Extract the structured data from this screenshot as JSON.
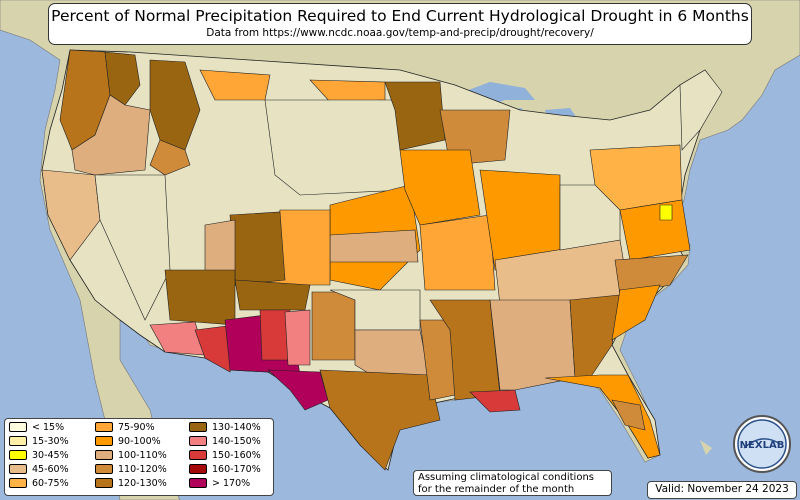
{
  "title": "Percent of Normal Precipitation Required to End Current Hydrological Drought in 6 Months",
  "subtitle": "Data from https://www.ncdc.noaa.gov/temp-and-precip/drought/recovery/",
  "legend": [
    {
      "label": "< 15%",
      "color": "#fffde0"
    },
    {
      "label": "15-30%",
      "color": "#fff0a8"
    },
    {
      "label": "30-45%",
      "color": "#ffff00"
    },
    {
      "label": "45-60%",
      "color": "#e8bd8a"
    },
    {
      "label": "60-75%",
      "color": "#ffb347"
    },
    {
      "label": "75-90%",
      "color": "#ffa637"
    },
    {
      "label": "90-100%",
      "color": "#ff9900"
    },
    {
      "label": "100-110%",
      "color": "#dfae7e"
    },
    {
      "label": "110-120%",
      "color": "#cf8a3a"
    },
    {
      "label": "120-130%",
      "color": "#b8741a"
    },
    {
      "label": "130-140%",
      "color": "#9a6510"
    },
    {
      "label": "140-150%",
      "color": "#f28080"
    },
    {
      "label": "150-160%",
      "color": "#d83a3a"
    },
    {
      "label": "160-170%",
      "color": "#a50808"
    },
    {
      "label": "> 170%",
      "color": "#b0005a"
    }
  ],
  "note": {
    "line1": "Assuming climatological conditions",
    "line2": "for the remainder of the month"
  },
  "valid": "Valid: November 24 2023",
  "logo_text": "NEXLAB",
  "colors": {
    "ocean": "#9cb8dc",
    "land": "#dcd9b4",
    "lake": "#7fa7d6",
    "border": "#222222"
  }
}
